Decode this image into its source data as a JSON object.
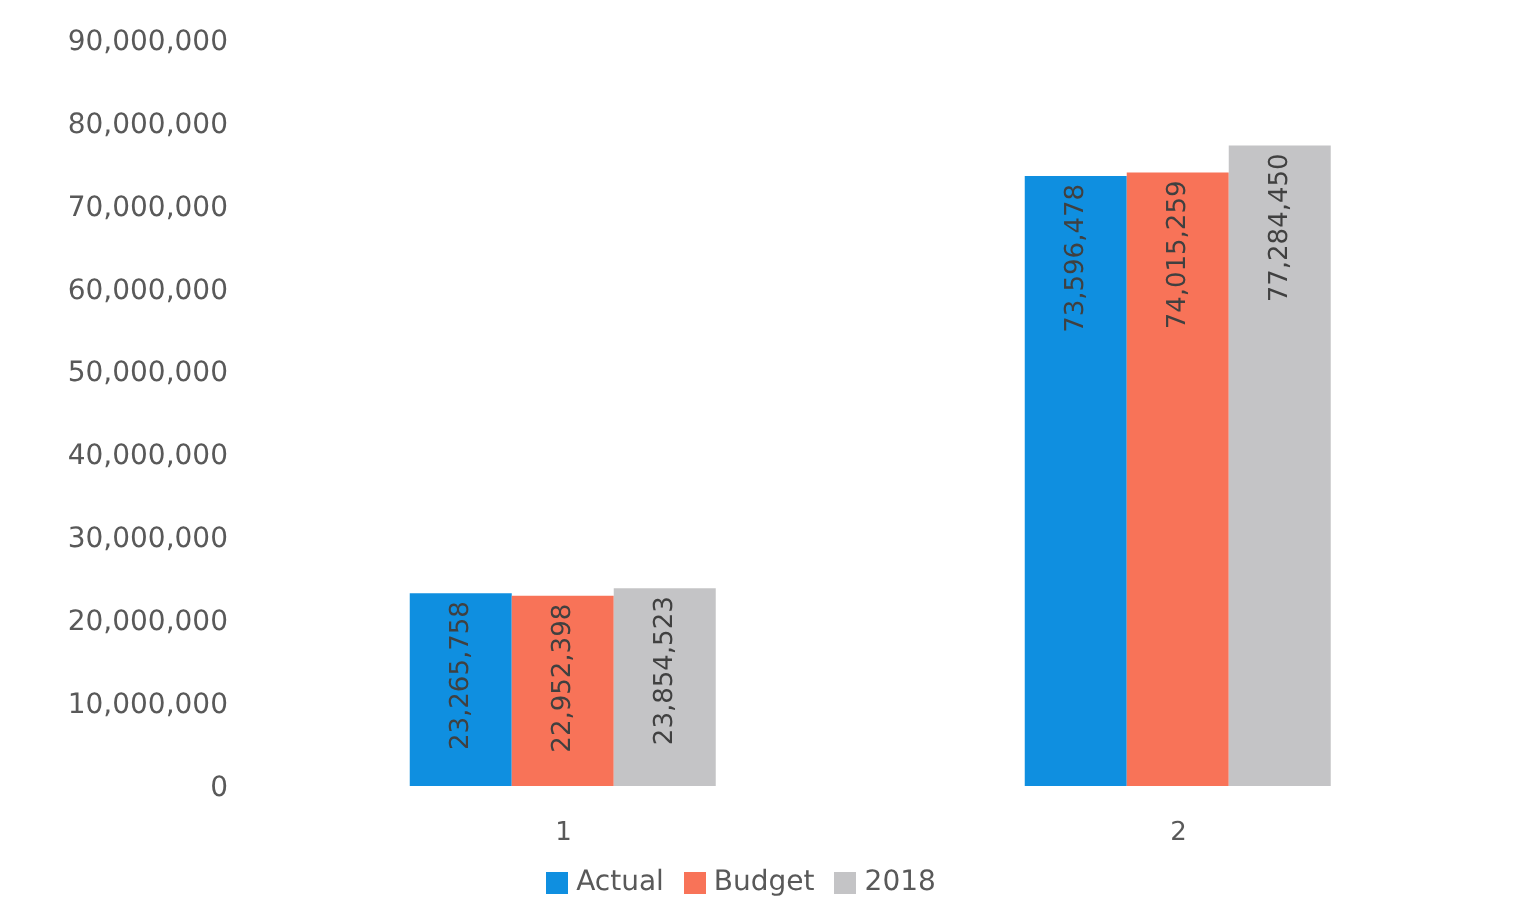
{
  "chart_data": {
    "type": "bar",
    "categories": [
      "1",
      "2"
    ],
    "series": [
      {
        "name": "Actual",
        "color": "#0f8fe0",
        "values": [
          23265758,
          73596478
        ],
        "value_labels": [
          "23,265,758",
          "73,596,478"
        ]
      },
      {
        "name": "Budget",
        "color": "#f87358",
        "values": [
          22952398,
          74015259
        ],
        "value_labels": [
          "22,952,398",
          "74,015,259"
        ]
      },
      {
        "name": "2018",
        "color": "#c4c4c6",
        "values": [
          23854523,
          77284450
        ],
        "value_labels": [
          "23,854,523",
          "77,284,450"
        ]
      }
    ],
    "ylim": [
      0,
      90000000
    ],
    "yticks": [
      0,
      {
        "value": 10000000,
        "label": "10,000,000"
      },
      {
        "value": 20000000,
        "label": "20,000,000"
      },
      {
        "value": 30000000,
        "label": "30,000,000"
      },
      {
        "value": 40000000,
        "label": "40,000,000"
      },
      {
        "value": 50000000,
        "label": "50,000,000"
      },
      {
        "value": 60000000,
        "label": "60,000,000"
      },
      {
        "value": 70000000,
        "label": "70,000,000"
      },
      {
        "value": 80000000,
        "label": "80,000,000"
      },
      {
        "value": 90000000,
        "label": "90,000,000"
      }
    ],
    "grid": false,
    "legend": "bottom"
  }
}
